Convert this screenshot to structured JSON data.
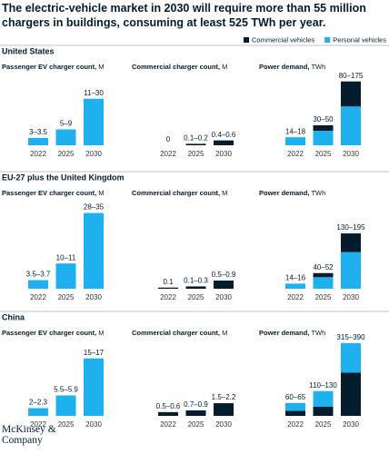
{
  "title": "The electric-vehicle market in 2030 will require more than 55 million chargers in buildings, consuming at least 525 TWh per year.",
  "regions": [
    "United States",
    "EU-27 plus the United Kingdom",
    "China"
  ],
  "logo": "McKinsey & Company",
  "chart_data": [
    {
      "type": "bar",
      "title": "Passenger EV charger count,",
      "unit": "M",
      "categories": [
        "2022",
        "2025",
        "2030"
      ],
      "values": [
        3.25,
        7,
        20.5
      ],
      "value_labels": [
        "3–3.5",
        "5–9",
        "11–30"
      ],
      "color": "#1fb0ef",
      "ylim": [
        0,
        30
      ]
    },
    {
      "type": "bar",
      "title": "Commercial charger count,",
      "unit": "M",
      "categories": [
        "2022",
        "2025",
        "2030"
      ],
      "values": [
        0,
        0.15,
        0.5
      ],
      "value_labels": [
        "0",
        "0.1–0.2",
        "0.4–0.6"
      ],
      "color": "#051c2c",
      "ylim": [
        0,
        7
      ]
    },
    {
      "type": "stacked_bar",
      "title": "Power demand,",
      "unit": "TWh",
      "categories": [
        "2022",
        "2025",
        "2030"
      ],
      "value_labels": [
        "14–18",
        "30–50",
        "80–175"
      ],
      "ylim": [
        0,
        136
      ],
      "series": [
        {
          "name": "Personal vehicles",
          "color": "#1fb0ef",
          "values": [
            16,
            29,
            77.5
          ]
        },
        {
          "name": "Commercial vehicles",
          "color": "#051c2c",
          "values": [
            0,
            11,
            50
          ]
        }
      ]
    },
    {
      "type": "bar",
      "title": "Passenger EV charger count,",
      "unit": "M",
      "categories": [
        "2022",
        "2025",
        "2030"
      ],
      "values": [
        3.6,
        10.5,
        31.5
      ],
      "value_labels": [
        "3.5–3.7",
        "10–11",
        "28–35"
      ],
      "color": "#1fb0ef",
      "ylim": [
        0,
        34
      ]
    },
    {
      "type": "bar",
      "title": "Commercial charger count,",
      "unit": "M",
      "categories": [
        "2022",
        "2025",
        "2030"
      ],
      "values": [
        0.1,
        0.2,
        0.7
      ],
      "value_labels": [
        "0.1",
        "0.1–0.3",
        "0.5–0.9"
      ],
      "color": "#051c2c",
      "ylim": [
        0,
        7
      ]
    },
    {
      "type": "stacked_bar",
      "title": "Power demand,",
      "unit": "TWh",
      "categories": [
        "2022",
        "2025",
        "2030"
      ],
      "value_labels": [
        "14–16",
        "40–52",
        "130–195"
      ],
      "ylim": [
        0,
        240
      ],
      "series": [
        {
          "name": "Personal vehicles",
          "color": "#1fb0ef",
          "values": [
            15,
            34,
            107.5
          ]
        },
        {
          "name": "Commercial vehicles",
          "color": "#051c2c",
          "values": [
            0,
            12,
            55
          ]
        }
      ]
    },
    {
      "type": "bar",
      "title": "Passenger EV charger count,",
      "unit": "M",
      "categories": [
        "2022",
        "2025",
        "2030"
      ],
      "values": [
        2.15,
        5.7,
        16
      ],
      "value_labels": [
        "2–2.3",
        "5.5–5.9",
        "15–17"
      ],
      "color": "#1fb0ef",
      "ylim": [
        0,
        21
      ]
    },
    {
      "type": "bar",
      "title": "Commercial charger count,",
      "unit": "M",
      "categories": [
        "2022",
        "2025",
        "2030"
      ],
      "values": [
        0.55,
        0.8,
        1.85
      ],
      "value_labels": [
        "0.5–0.6",
        "0.7–0.9",
        "1.5–2.2"
      ],
      "color": "#051c2c",
      "ylim": [
        0,
        11
      ]
    },
    {
      "type": "stacked_bar",
      "title": "Power demand,",
      "unit": "TWh",
      "categories": [
        "2022",
        "2025",
        "2030"
      ],
      "value_labels": [
        "60–65",
        "110–130",
        "315–390"
      ],
      "ylim": [
        0,
        365
      ],
      "series": [
        {
          "name": "Commercial vehicles",
          "color": "#051c2c",
          "values": [
            25,
            45,
            210
          ]
        },
        {
          "name": "Personal vehicles",
          "color": "#1fb0ef",
          "values": [
            37.5,
            75,
            142.5
          ]
        }
      ]
    }
  ]
}
